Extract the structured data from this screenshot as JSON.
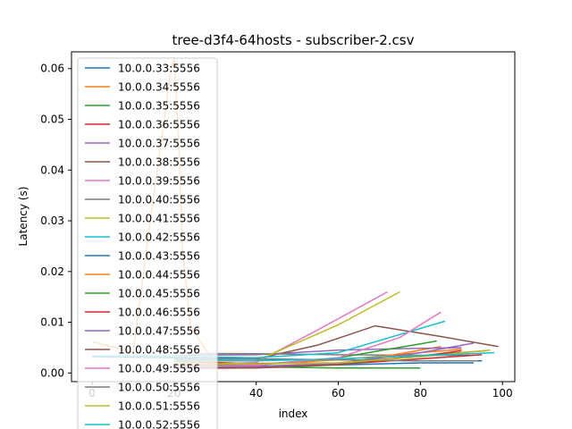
{
  "chart_data": {
    "type": "line",
    "title": "tree-d3f4-64hosts - subscriber-2.csv",
    "xlabel": "index",
    "ylabel": "Latency (s)",
    "xlim": [
      -5,
      103
    ],
    "ylim": [
      -0.0017,
      0.0633
    ],
    "xticks": [
      0,
      20,
      40,
      60,
      80,
      100
    ],
    "yticks": [
      0.0,
      0.01,
      0.02,
      0.03,
      0.04,
      0.05,
      0.06
    ],
    "xtick_labels": [
      "0",
      "20",
      "40",
      "60",
      "80",
      "100"
    ],
    "ytick_labels": [
      "0.00",
      "0.01",
      "0.02",
      "0.03",
      "0.04",
      "0.05",
      "0.06"
    ],
    "grid": false,
    "legend_position": "upper-left",
    "series": [
      {
        "name": "10.0.0.33:5556",
        "color": "#1f77b4",
        "x": [
          0,
          20,
          40,
          60,
          80,
          95
        ],
        "y": [
          0.0032,
          0.003,
          0.0028,
          0.0026,
          0.0024,
          0.0024
        ]
      },
      {
        "name": "10.0.0.34:5556",
        "color": "#ff7f0e",
        "x": [
          0,
          10,
          15,
          18,
          19,
          20,
          21,
          22,
          24,
          30,
          45,
          60,
          75,
          85
        ],
        "y": [
          0.0062,
          0.0041,
          0.035,
          0.052,
          0.059,
          0.062,
          0.048,
          0.025,
          0.009,
          0.002,
          0.0011,
          0.0018,
          0.0038,
          0.0052
        ]
      },
      {
        "name": "10.0.0.35:5556",
        "color": "#2ca02c",
        "x": [
          20,
          40,
          60,
          80
        ],
        "y": [
          0.0015,
          0.0012,
          0.001,
          0.001
        ]
      },
      {
        "name": "10.0.0.36:5556",
        "color": "#d62728",
        "x": [
          20,
          40,
          60,
          80,
          90
        ],
        "y": [
          0.0022,
          0.0019,
          0.002,
          0.0033,
          0.0044
        ]
      },
      {
        "name": "10.0.0.37:5556",
        "color": "#9467bd",
        "x": [
          20,
          40,
          60,
          75,
          90
        ],
        "y": [
          0.0035,
          0.0036,
          0.0045,
          0.0048,
          0.005
        ]
      },
      {
        "name": "10.0.0.38:5556",
        "color": "#8c564b",
        "x": [
          20,
          40,
          55,
          69,
          85,
          99
        ],
        "y": [
          0.0026,
          0.0028,
          0.0055,
          0.0093,
          0.0072,
          0.0052
        ]
      },
      {
        "name": "10.0.0.39:5556",
        "color": "#e377c2",
        "x": [
          25,
          40,
          55,
          72
        ],
        "y": [
          0.0016,
          0.0021,
          0.0085,
          0.016
        ]
      },
      {
        "name": "10.0.0.40:5556",
        "color": "#7f7f7f",
        "x": [
          20,
          40,
          60,
          80,
          92
        ],
        "y": [
          0.0039,
          0.0038,
          0.0036,
          0.0035,
          0.0035
        ]
      },
      {
        "name": "10.0.0.41:5556",
        "color": "#bcbd22",
        "x": [
          20,
          40,
          60,
          75
        ],
        "y": [
          0.0023,
          0.0024,
          0.0095,
          0.016
        ]
      },
      {
        "name": "10.0.0.42:5556",
        "color": "#17becf",
        "x": [
          0,
          20,
          40,
          60,
          86
        ],
        "y": [
          0.0034,
          0.0033,
          0.003,
          0.004,
          0.0102
        ]
      },
      {
        "name": "10.0.0.43:5556",
        "color": "#1f77b4",
        "x": [
          20,
          40,
          60,
          80,
          93
        ],
        "y": [
          0.0014,
          0.0014,
          0.0016,
          0.002,
          0.002
        ]
      },
      {
        "name": "10.0.0.44:5556",
        "color": "#ff7f0e",
        "x": [
          20,
          40,
          60,
          80,
          90
        ],
        "y": [
          0.0018,
          0.0017,
          0.0026,
          0.004,
          0.0047
        ]
      },
      {
        "name": "10.0.0.45:5556",
        "color": "#2ca02c",
        "x": [
          20,
          40,
          60,
          84
        ],
        "y": [
          0.0014,
          0.0016,
          0.003,
          0.0063
        ]
      },
      {
        "name": "10.0.0.46:5556",
        "color": "#d62728",
        "x": [
          20,
          40,
          60,
          80,
          95
        ],
        "y": [
          0.0011,
          0.0012,
          0.0017,
          0.0028,
          0.0036
        ]
      },
      {
        "name": "10.0.0.47:5556",
        "color": "#9467bd",
        "x": [
          20,
          40,
          60,
          80,
          93
        ],
        "y": [
          0.0012,
          0.0013,
          0.0019,
          0.004,
          0.0059
        ]
      },
      {
        "name": "10.0.0.48:5556",
        "color": "#8c564b",
        "x": [
          20,
          40,
          60,
          80,
          96
        ],
        "y": [
          0.0009,
          0.001,
          0.0016,
          0.0034,
          0.0044
        ]
      },
      {
        "name": "10.0.0.49:5556",
        "color": "#e377c2",
        "x": [
          20,
          40,
          60,
          75,
          85
        ],
        "y": [
          0.0013,
          0.0015,
          0.003,
          0.007,
          0.012
        ]
      },
      {
        "name": "10.0.0.50:5556",
        "color": "#7f7f7f",
        "x": [
          20,
          40,
          60,
          80,
          94
        ],
        "y": [
          0.0028,
          0.0027,
          0.0026,
          0.0024,
          0.0024
        ]
      },
      {
        "name": "10.0.0.51:5556",
        "color": "#bcbd22",
        "x": [
          20,
          40,
          60,
          80,
          97
        ],
        "y": [
          0.0018,
          0.0018,
          0.002,
          0.0032,
          0.0045
        ]
      },
      {
        "name": "10.0.0.52:5556",
        "color": "#17becf",
        "x": [
          20,
          40,
          60,
          80,
          98
        ],
        "y": [
          0.0025,
          0.0024,
          0.0028,
          0.0034,
          0.004
        ]
      }
    ]
  }
}
